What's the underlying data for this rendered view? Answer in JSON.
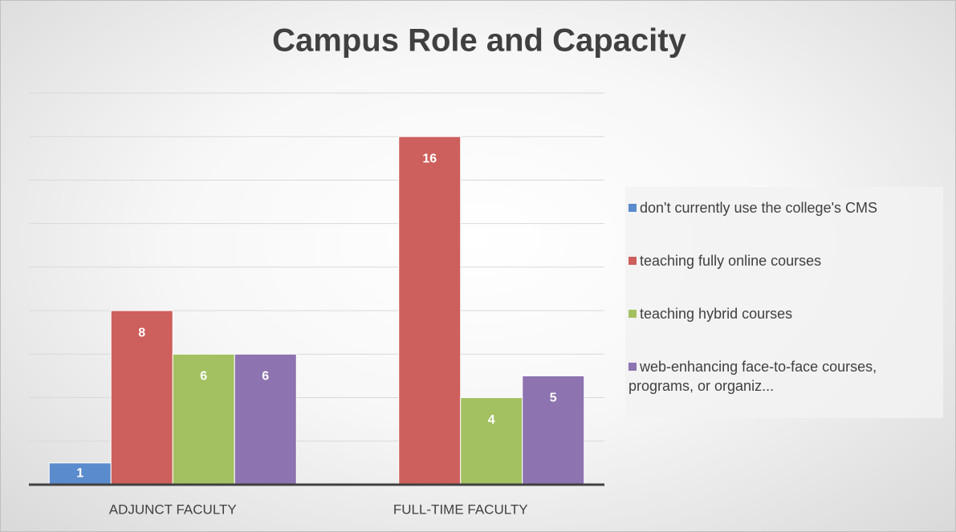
{
  "chart_data": {
    "type": "bar",
    "title": "Campus Role and Capacity",
    "categories": [
      "ADJUNCT FACULTY",
      "FULL-TIME FACULTY"
    ],
    "series": [
      {
        "name": "don't currently use the college's CMS",
        "color": "#5a8bcc",
        "values": [
          1,
          null
        ]
      },
      {
        "name": "teaching fully online courses",
        "color": "#cd5f5c",
        "values": [
          8,
          16
        ]
      },
      {
        "name": "teaching hybrid courses",
        "color": "#a3c161",
        "values": [
          6,
          4
        ]
      },
      {
        "name": "web-enhancing face-to-face courses, programs, or organiz...",
        "color": "#8d73b0",
        "values": [
          6,
          5
        ]
      }
    ],
    "ylim": [
      0,
      18
    ],
    "yticks": [
      0,
      2,
      4,
      6,
      8,
      10,
      12,
      14,
      16,
      18
    ],
    "grid": true,
    "legend": "right"
  }
}
